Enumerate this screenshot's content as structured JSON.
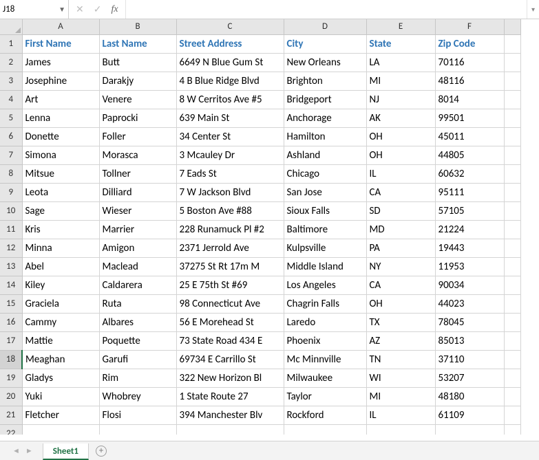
{
  "namebox": {
    "value": "J18"
  },
  "formula": {
    "value": ""
  },
  "sheetTab": {
    "label": "Sheet1"
  },
  "columns": [
    "A",
    "B",
    "C",
    "D",
    "E",
    "F"
  ],
  "selectedRowHeader": 18,
  "table": {
    "headerColor": "#2f75b5",
    "headers": {
      "A": "First Name",
      "B": "Last Name",
      "C": "Street Address",
      "D": "City",
      "E": "State",
      "F": "Zip Code"
    },
    "rows": [
      {
        "A": "James",
        "B": "Butt",
        "C": "6649 N Blue Gum St",
        "D": "New Orleans",
        "E": "LA",
        "F": "70116"
      },
      {
        "A": "Josephine",
        "B": "Darakjy",
        "C": "4 B Blue Ridge Blvd",
        "D": "Brighton",
        "E": "MI",
        "F": "48116"
      },
      {
        "A": "Art",
        "B": "Venere",
        "C": "8 W Cerritos Ave #5",
        "D": "Bridgeport",
        "E": "NJ",
        "F": "8014"
      },
      {
        "A": "Lenna",
        "B": "Paprocki",
        "C": "639 Main St",
        "D": "Anchorage",
        "E": "AK",
        "F": "99501"
      },
      {
        "A": "Donette",
        "B": "Foller",
        "C": "34 Center St",
        "D": "Hamilton",
        "E": "OH",
        "F": "45011"
      },
      {
        "A": "Simona",
        "B": "Morasca",
        "C": "3 Mcauley Dr",
        "D": "Ashland",
        "E": "OH",
        "F": "44805"
      },
      {
        "A": "Mitsue",
        "B": "Tollner",
        "C": "7 Eads St",
        "D": "Chicago",
        "E": "IL",
        "F": "60632"
      },
      {
        "A": "Leota",
        "B": "Dilliard",
        "C": "7 W Jackson Blvd",
        "D": "San Jose",
        "E": "CA",
        "F": "95111"
      },
      {
        "A": "Sage",
        "B": "Wieser",
        "C": "5 Boston Ave #88",
        "D": "Sioux Falls",
        "E": "SD",
        "F": "57105"
      },
      {
        "A": "Kris",
        "B": "Marrier",
        "C": "228 Runamuck Pl #2",
        "D": "Baltimore",
        "E": "MD",
        "F": "21224"
      },
      {
        "A": "Minna",
        "B": "Amigon",
        "C": "2371 Jerrold Ave",
        "D": "Kulpsville",
        "E": "PA",
        "F": "19443"
      },
      {
        "A": "Abel",
        "B": "Maclead",
        "C": "37275 St  Rt 17m M",
        "D": "Middle Island",
        "E": "NY",
        "F": "11953"
      },
      {
        "A": "Kiley",
        "B": "Caldarera",
        "C": "25 E 75th St #69",
        "D": "Los Angeles",
        "E": "CA",
        "F": "90034"
      },
      {
        "A": "Graciela",
        "B": "Ruta",
        "C": "98 Connecticut Ave",
        "D": "Chagrin Falls",
        "E": "OH",
        "F": "44023"
      },
      {
        "A": "Cammy",
        "B": "Albares",
        "C": "56 E Morehead St",
        "D": "Laredo",
        "E": "TX",
        "F": "78045"
      },
      {
        "A": "Mattie",
        "B": "Poquette",
        "C": "73 State Road 434 E",
        "D": "Phoenix",
        "E": "AZ",
        "F": "85013"
      },
      {
        "A": "Meaghan",
        "B": "Garufi",
        "C": "69734 E Carrillo St",
        "D": "Mc Minnville",
        "E": "TN",
        "F": "37110"
      },
      {
        "A": "Gladys",
        "B": "Rim",
        "C": "322 New Horizon Bl",
        "D": "Milwaukee",
        "E": "WI",
        "F": "53207"
      },
      {
        "A": "Yuki",
        "B": "Whobrey",
        "C": "1 State Route 27",
        "D": "Taylor",
        "E": "MI",
        "F": "48180"
      },
      {
        "A": "Fletcher",
        "B": "Flosi",
        "C": "394 Manchester Blv",
        "D": "Rockford",
        "E": "IL",
        "F": "61109"
      }
    ]
  }
}
